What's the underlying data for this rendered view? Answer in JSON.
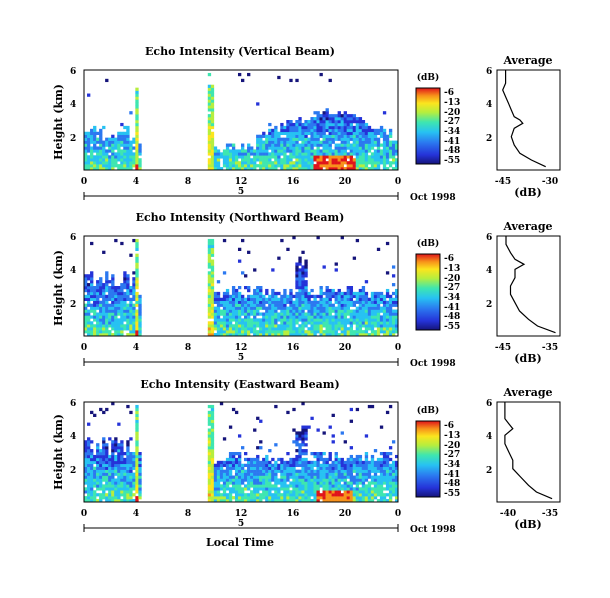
{
  "chart_data": [
    {
      "type": "heatmap",
      "title": "Echo Intensity (Vertical Beam)",
      "ylabel": "Height (km)",
      "xlabel": "",
      "x_ticks": [
        "0",
        "4",
        "8",
        "12",
        "16",
        "20",
        "0"
      ],
      "y_ticks": [
        "6",
        "4",
        "2"
      ],
      "xlim": [
        0,
        24
      ],
      "ylim": [
        0,
        6
      ],
      "date_label": "Oct 1998",
      "day_label": "5",
      "colorbar": {
        "unit": "(dB)",
        "ticks": [
          "-6",
          "-13",
          "-20",
          "-27",
          "-34",
          "-41",
          "-48",
          "-55"
        ]
      },
      "profile": {
        "title": "Average",
        "xlabel": "(dB)",
        "x_ticks": [
          "-45",
          "-30"
        ],
        "y_ticks": [
          "6",
          "4",
          "2"
        ],
        "xlim": [
          -48,
          -26
        ],
        "heights": [
          0.2,
          0.6,
          1.0,
          1.5,
          2.0,
          2.5,
          2.8,
          3.0,
          3.2,
          3.6,
          4.0,
          4.4,
          4.8,
          5.2,
          5.6,
          6.0
        ],
        "values": [
          -31,
          -36,
          -40,
          -42,
          -43,
          -42,
          -39,
          -40,
          -42,
          -43,
          -44,
          -45,
          -46,
          -45,
          -45,
          -45
        ]
      }
    },
    {
      "type": "heatmap",
      "title": "Echo Intensity (Northward Beam)",
      "ylabel": "Height (km)",
      "xlabel": "",
      "x_ticks": [
        "0",
        "4",
        "8",
        "12",
        "16",
        "20",
        "0"
      ],
      "y_ticks": [
        "6",
        "4",
        "2"
      ],
      "xlim": [
        0,
        24
      ],
      "ylim": [
        0,
        6
      ],
      "date_label": "Oct 1998",
      "day_label": "5",
      "colorbar": {
        "unit": "(dB)",
        "ticks": [
          "-6",
          "-13",
          "-20",
          "-27",
          "-34",
          "-41",
          "-48",
          "-55"
        ]
      },
      "profile": {
        "title": "Average",
        "xlabel": "(dB)",
        "x_ticks": [
          "-45",
          "-35"
        ],
        "y_ticks": [
          "6",
          "4",
          "2"
        ],
        "xlim": [
          -47,
          -33
        ],
        "heights": [
          0.2,
          0.6,
          1.0,
          1.5,
          2.0,
          2.5,
          3.0,
          3.5,
          4.0,
          4.3,
          4.6,
          5.0,
          5.5,
          6.0
        ],
        "values": [
          -34,
          -38,
          -40,
          -42,
          -43,
          -44,
          -44,
          -43,
          -43,
          -41,
          -43,
          -44,
          -45,
          -45
        ]
      }
    },
    {
      "type": "heatmap",
      "title": "Echo Intensity (Eastward Beam)",
      "ylabel": "Height (km)",
      "xlabel": "Local Time",
      "x_ticks": [
        "0",
        "4",
        "8",
        "12",
        "16",
        "20",
        "0"
      ],
      "y_ticks": [
        "6",
        "4",
        "2"
      ],
      "xlim": [
        0,
        24
      ],
      "ylim": [
        0,
        6
      ],
      "date_label": "Oct 1998",
      "day_label": "5",
      "colorbar": {
        "unit": "(dB)",
        "ticks": [
          "-6",
          "-13",
          "-20",
          "-27",
          "-34",
          "-41",
          "-48",
          "-55"
        ]
      },
      "profile": {
        "title": "Average",
        "xlabel": "(dB)",
        "x_ticks": [
          "-40",
          "-35"
        ],
        "y_ticks": [
          "6",
          "4",
          "2"
        ],
        "xlim": [
          -42,
          -34
        ],
        "heights": [
          0.2,
          0.6,
          1.0,
          1.5,
          2.0,
          2.5,
          3.0,
          3.5,
          4.0,
          4.4,
          4.7,
          5.0,
          5.5,
          6.0
        ],
        "values": [
          -35,
          -37,
          -38,
          -39,
          -40,
          -40,
          -40.5,
          -41,
          -41,
          -40,
          -40.5,
          -41,
          -41,
          -41
        ]
      }
    }
  ]
}
